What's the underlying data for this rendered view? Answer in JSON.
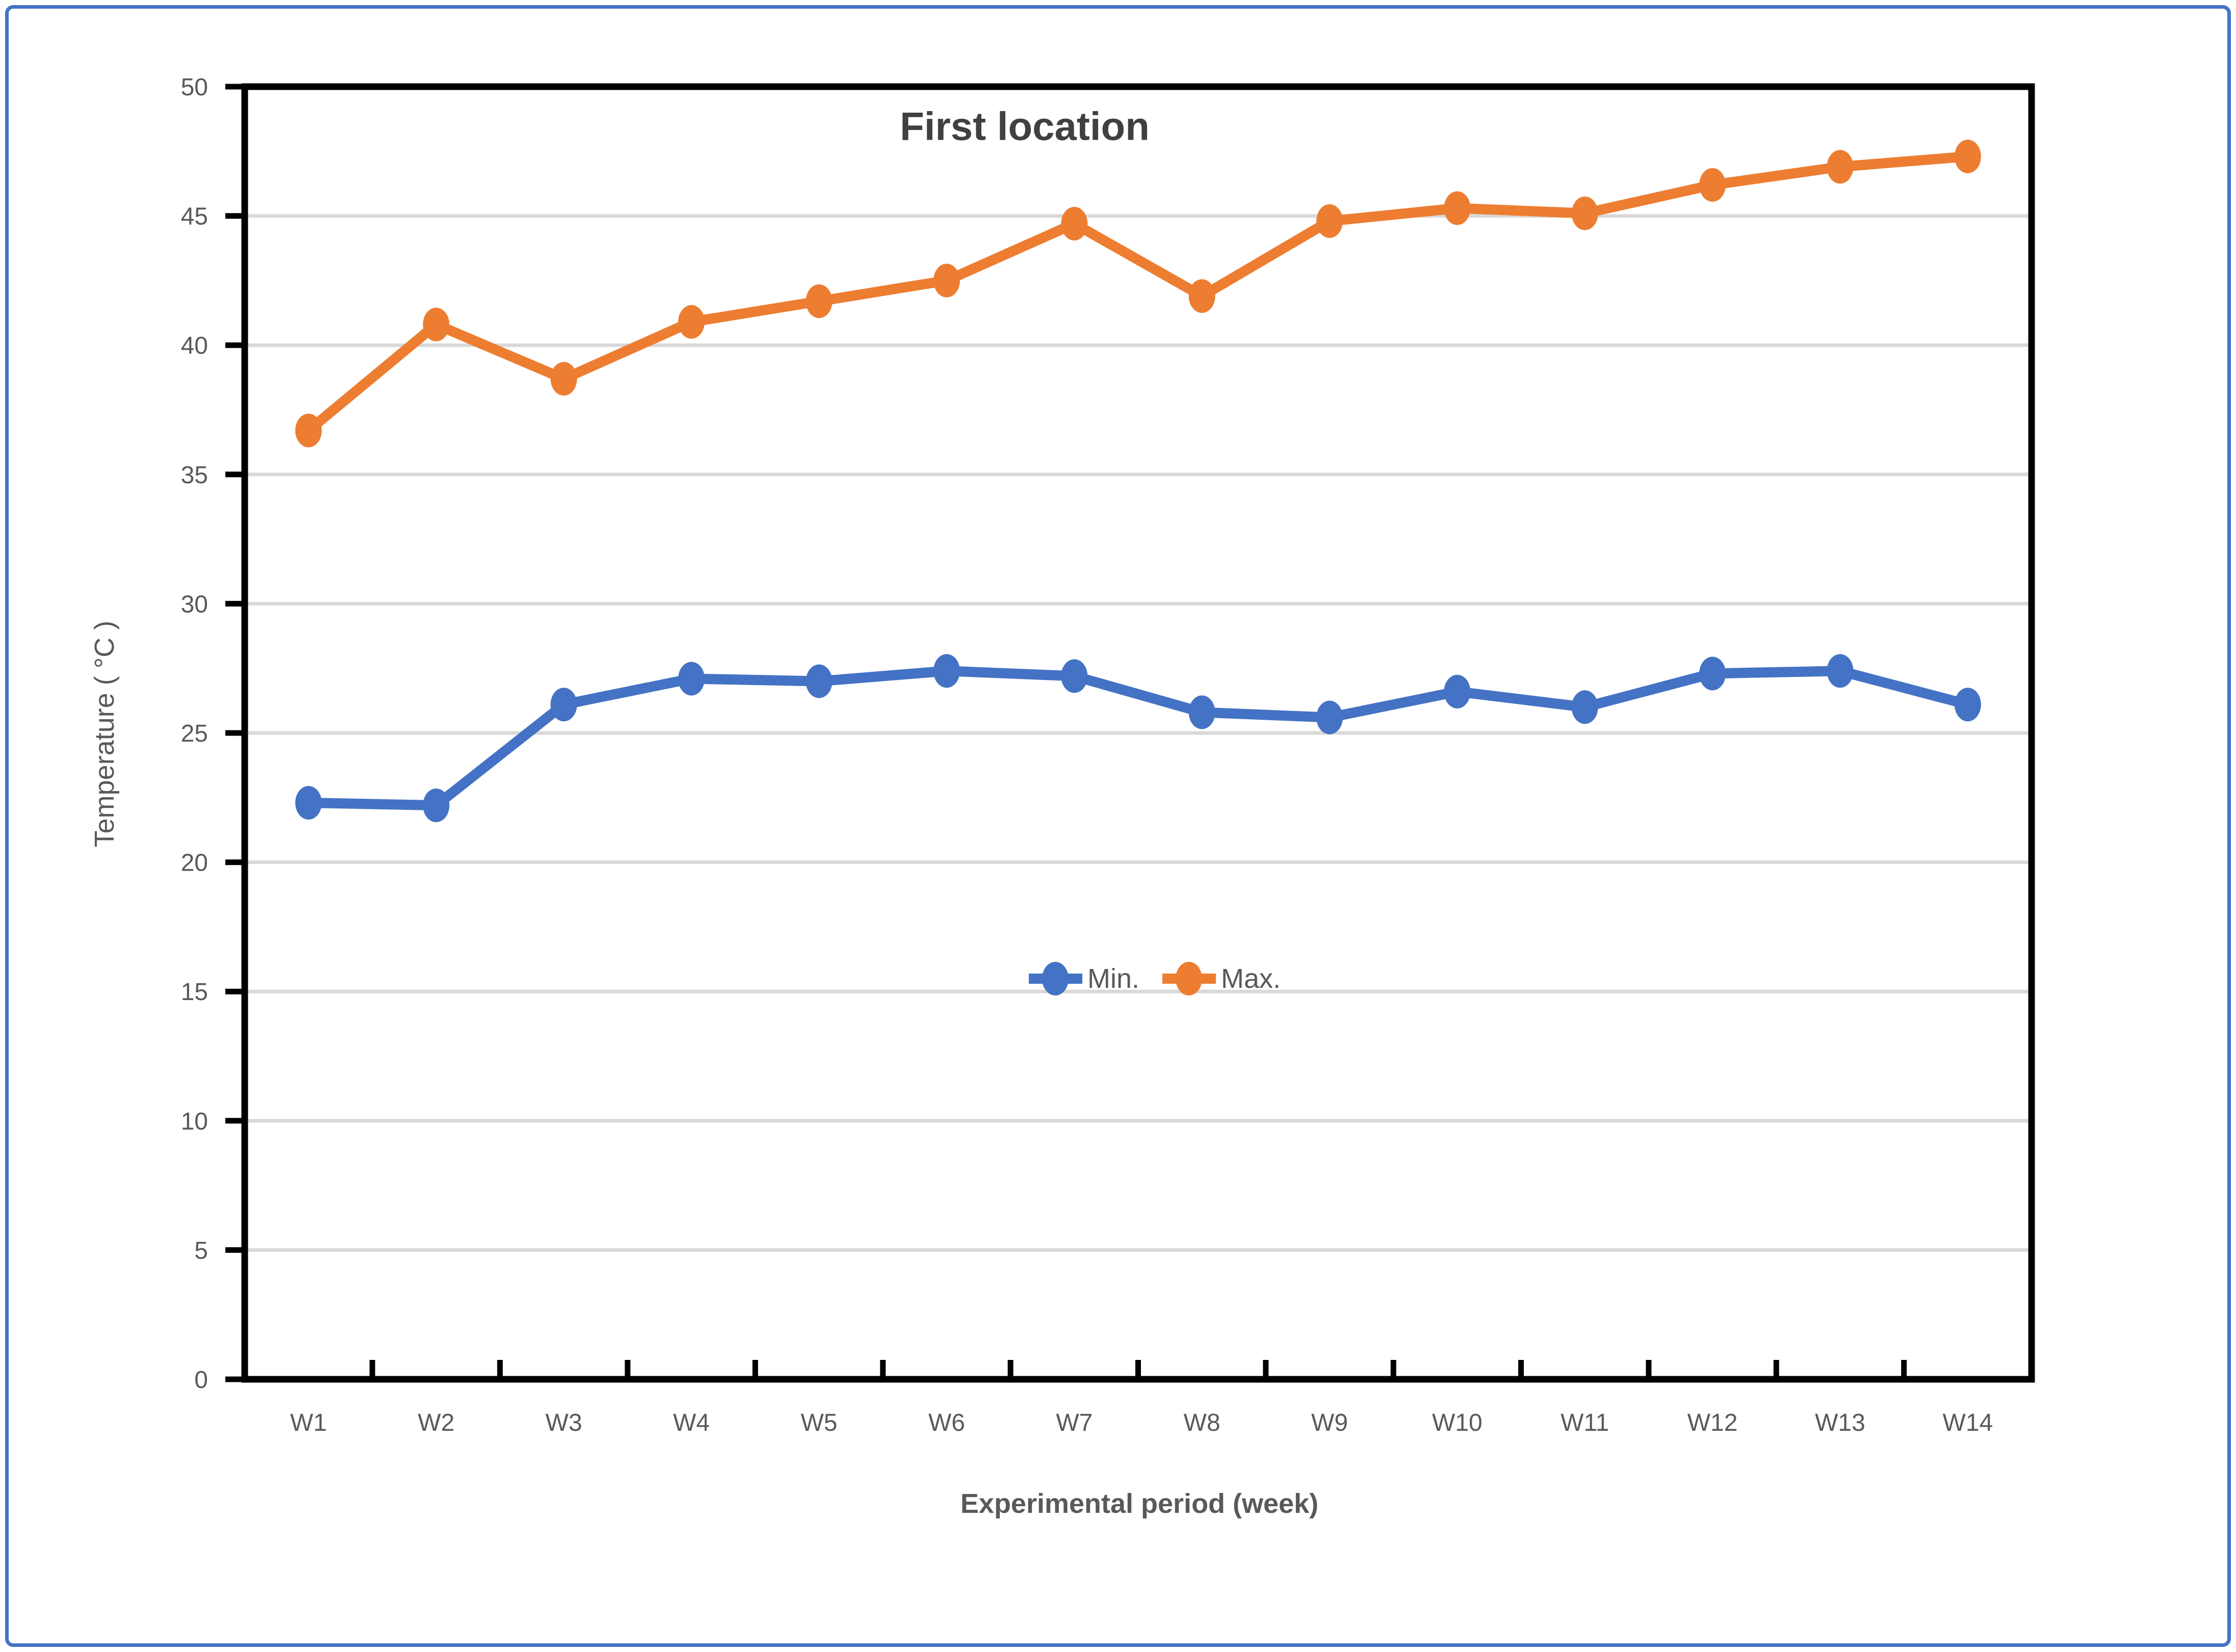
{
  "figure": {
    "border_color": "#4472C4",
    "background_color": "#FFFFFF"
  },
  "chart_data": {
    "type": "line",
    "title": "First location",
    "xlabel": "Experimental period (week)",
    "ylabel": "Temperature ( °C )",
    "categories": [
      "W1",
      "W2",
      "W3",
      "W4",
      "W5",
      "W6",
      "W7",
      "W8",
      "W9",
      "W10",
      "W11",
      "W12",
      "W13",
      "W14"
    ],
    "series": [
      {
        "name": "Min.",
        "color": "#4472C4",
        "values": [
          22.3,
          22.2,
          26.1,
          27.1,
          27.0,
          27.4,
          27.2,
          25.8,
          25.6,
          26.6,
          26.0,
          27.3,
          27.4,
          26.1
        ]
      },
      {
        "name": "Max.",
        "color": "#ED7D31",
        "values": [
          36.7,
          40.8,
          38.7,
          40.9,
          41.7,
          42.5,
          44.7,
          41.9,
          44.8,
          45.3,
          45.1,
          46.2,
          46.9,
          47.3
        ]
      }
    ],
    "ylim": [
      0,
      50
    ],
    "ytick_step": 5,
    "grid": "horizontal",
    "gridline_color": "#D9D9D9",
    "axis_line_color": "#000000",
    "axis_text_color": "#595959",
    "legend_position": "inside-center"
  }
}
